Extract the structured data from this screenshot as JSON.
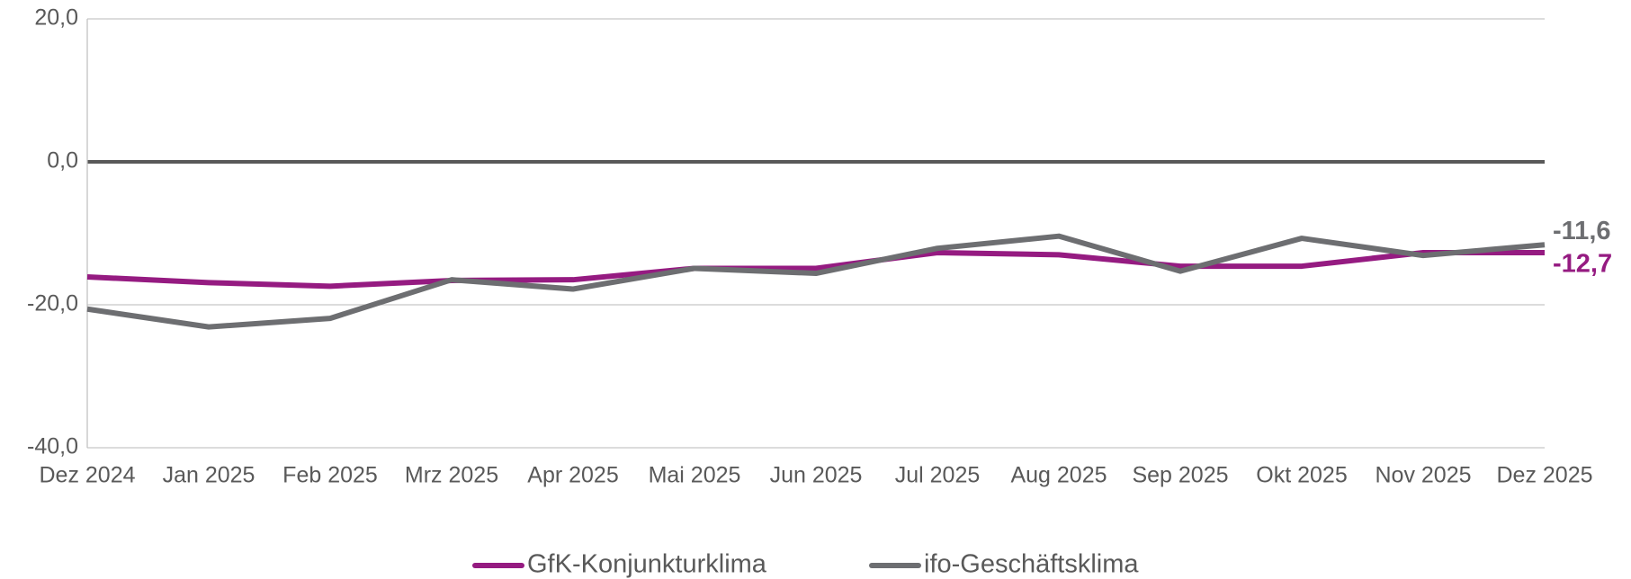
{
  "chart_data": {
    "type": "line",
    "categories": [
      "Dez 2024",
      "Jan 2025",
      "Feb 2025",
      "Mrz 2025",
      "Apr 2025",
      "Mai 2025",
      "Jun 2025",
      "Jul 2025",
      "Aug 2025",
      "Sep 2025",
      "Okt 2025",
      "Nov 2025",
      "Dez 2025"
    ],
    "series": [
      {
        "name": "GfK-Konjunkturklima",
        "color": "#951b81",
        "values": [
          -16.1,
          -16.9,
          -17.4,
          -16.6,
          -16.5,
          -14.9,
          -14.9,
          -12.7,
          -13.0,
          -14.6,
          -14.6,
          -12.7,
          -12.7
        ],
        "value_labels": [
          null,
          null,
          null,
          null,
          null,
          null,
          null,
          null,
          null,
          null,
          null,
          null,
          "-12,7"
        ]
      },
      {
        "name": "ifo-Geschäftsklima",
        "color": "#6d6e71",
        "values": [
          -20.6,
          -23.1,
          -21.9,
          -16.5,
          -17.8,
          -14.9,
          -15.6,
          -12.1,
          -10.4,
          -15.3,
          -10.7,
          -13.1,
          -11.6
        ],
        "value_labels": [
          null,
          null,
          null,
          null,
          null,
          null,
          null,
          null,
          null,
          null,
          null,
          null,
          "-11,6"
        ]
      }
    ],
    "ylim": [
      -40,
      20
    ],
    "yticks": [
      {
        "value": -40,
        "label": "-40,0"
      },
      {
        "value": -20,
        "label": "-20,0"
      },
      {
        "value": 0,
        "label": "0,0"
      },
      {
        "value": 20,
        "label": "20,0"
      }
    ],
    "grid": true,
    "legend": "bottom"
  }
}
